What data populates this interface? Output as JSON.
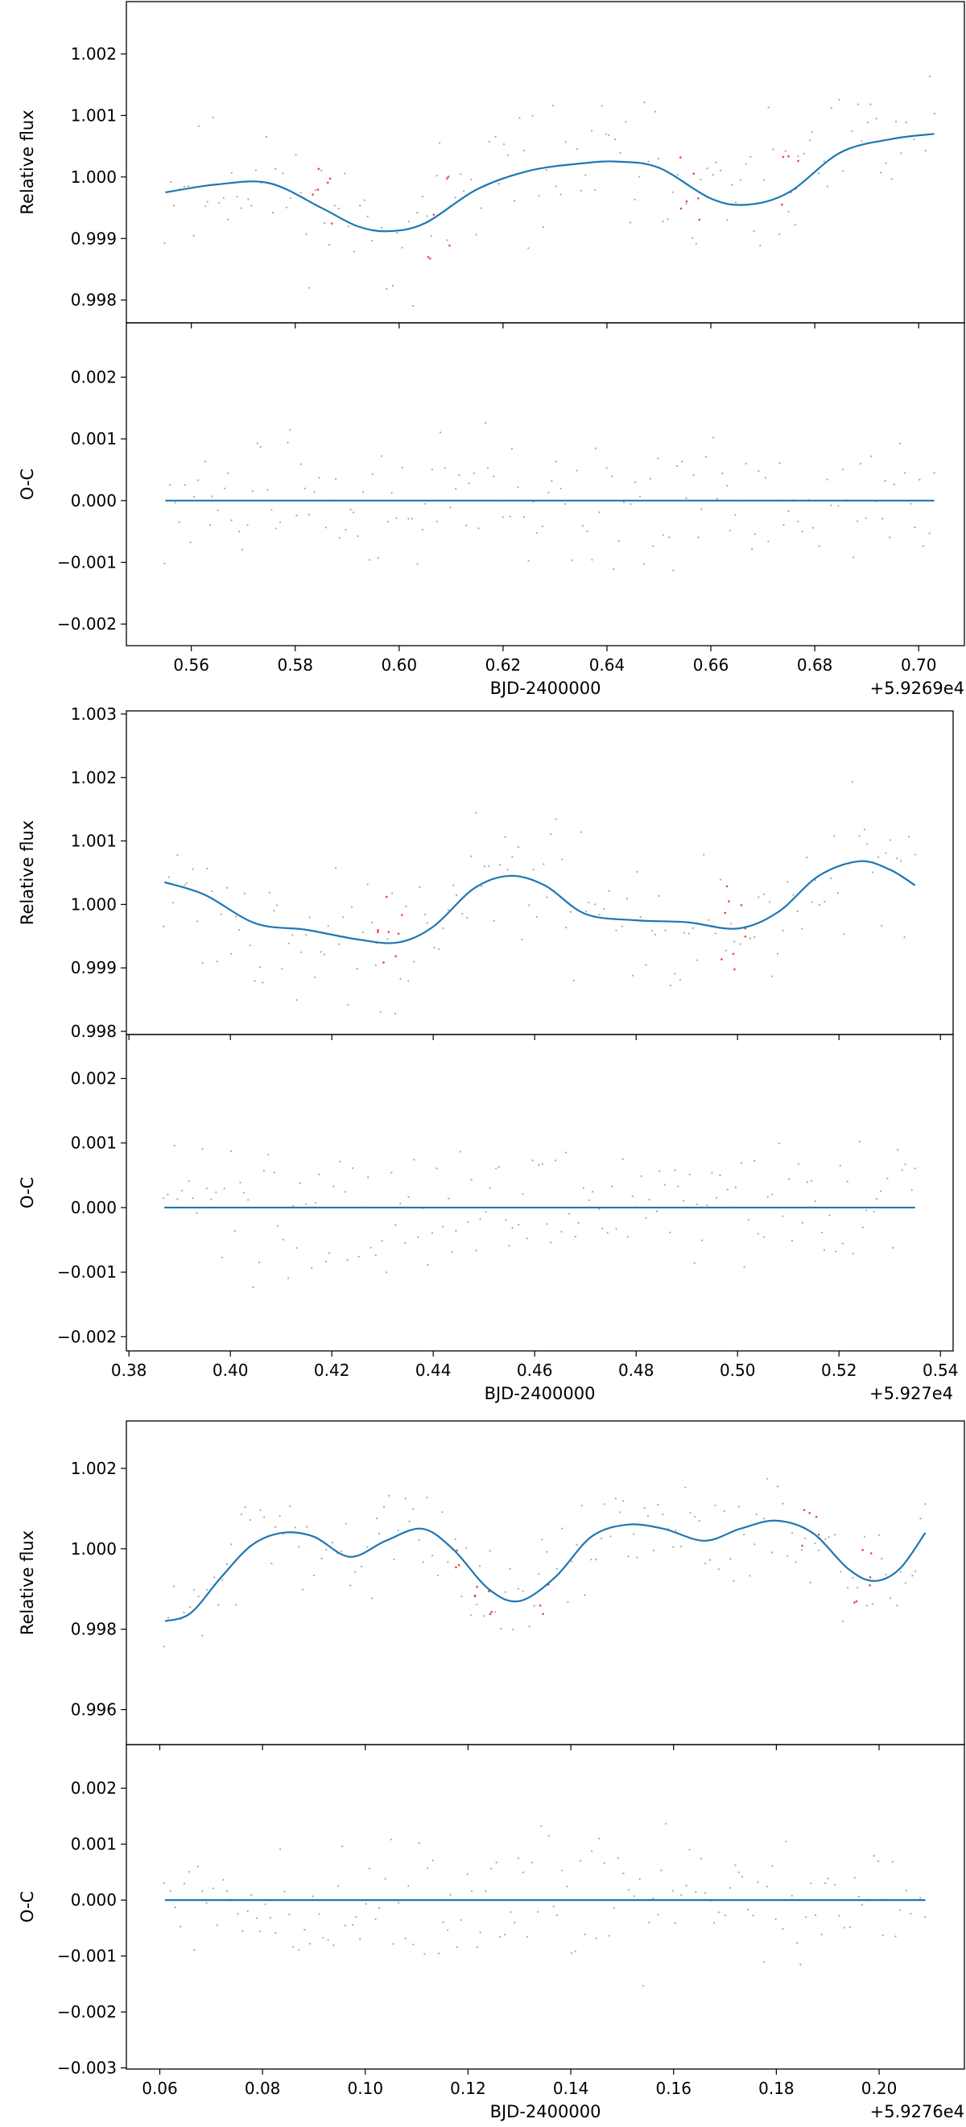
{
  "colors": {
    "model": "#1f77b4",
    "points": "#a7a7a7",
    "outliers": "#e8414a",
    "axis": "#000000"
  },
  "chart_data": [
    {
      "type": "line",
      "panel": "Relative flux",
      "ylabel": "Relative flux",
      "xlabel": "",
      "xlim": [
        0.5475,
        0.7088
      ],
      "ylim": [
        0.99763,
        1.00285
      ],
      "xticks": [
        0.56,
        0.58,
        0.6,
        0.62,
        0.64,
        0.66,
        0.68,
        0.7
      ],
      "xtick_labels": [],
      "yticks": [
        0.998,
        0.999,
        1.0,
        1.001,
        1.002
      ],
      "ytick_labels": [
        "0.998",
        "0.999",
        "1.000",
        "1.001",
        "1.002"
      ],
      "noise": 0.0009,
      "seed": 11,
      "outlier_x": [
        0.584,
        0.587,
        0.606,
        0.609,
        0.655,
        0.657,
        0.674,
        0.676
      ],
      "model": {
        "x": [
          0.555,
          0.565,
          0.575,
          0.585,
          0.592,
          0.598,
          0.605,
          0.615,
          0.625,
          0.635,
          0.642,
          0.65,
          0.66,
          0.667,
          0.675,
          0.685,
          0.695,
          0.703
        ],
        "y": [
          0.99975,
          0.99988,
          0.9999,
          0.9995,
          0.9992,
          0.99912,
          0.99925,
          0.9998,
          1.0001,
          1.00022,
          1.00025,
          1.00015,
          0.99965,
          0.99955,
          0.99975,
          1.0004,
          1.00062,
          1.0007
        ]
      }
    },
    {
      "type": "line",
      "panel": "O-C",
      "ylabel": "O-C",
      "xlabel": "BJD-2400000",
      "offset_label": "+5.9269e4",
      "xlim": [
        0.5475,
        0.7088
      ],
      "ylim": [
        -0.00235,
        0.00288
      ],
      "xticks": [
        0.56,
        0.58,
        0.6,
        0.62,
        0.64,
        0.66,
        0.68,
        0.7
      ],
      "xtick_labels": [
        "0.56",
        "0.58",
        "0.60",
        "0.62",
        "0.64",
        "0.66",
        "0.68",
        "0.70"
      ],
      "yticks": [
        -0.002,
        -0.001,
        0.0,
        0.001,
        0.002
      ],
      "ytick_labels": [
        "−0.002",
        "−0.001",
        "0.000",
        "0.001",
        "0.002"
      ],
      "noise": 0.0009,
      "seed": 12,
      "model": {
        "x": [
          0.555,
          0.703
        ],
        "y": [
          0,
          0
        ]
      }
    },
    {
      "type": "line",
      "panel": "Relative flux",
      "ylabel": "Relative flux",
      "xlabel": "",
      "xlim": [
        0.3795,
        0.5425
      ],
      "ylim": [
        0.99795,
        1.00305
      ],
      "xticks": [
        0.38,
        0.4,
        0.42,
        0.44,
        0.46,
        0.48,
        0.5,
        0.52,
        0.54
      ],
      "xtick_labels": [],
      "yticks": [
        0.998,
        0.999,
        1.0,
        1.001,
        1.002,
        1.003
      ],
      "ytick_labels": [
        "0.998",
        "0.999",
        "1.000",
        "1.001",
        "1.002",
        "1.003"
      ],
      "noise": 0.0009,
      "seed": 21,
      "outlier_x": [
        0.429,
        0.431,
        0.433,
        0.497,
        0.499,
        0.501
      ],
      "model": {
        "x": [
          0.387,
          0.395,
          0.405,
          0.415,
          0.425,
          0.433,
          0.44,
          0.448,
          0.455,
          0.462,
          0.47,
          0.48,
          0.49,
          0.5,
          0.508,
          0.516,
          0.524,
          0.53,
          0.535
        ],
        "y": [
          1.00035,
          1.00015,
          0.9997,
          0.9996,
          0.99945,
          0.9994,
          0.99965,
          1.00025,
          1.00045,
          1.0003,
          0.99985,
          0.99975,
          0.99972,
          0.99962,
          0.99988,
          1.00045,
          1.00068,
          1.00055,
          1.0003
        ]
      }
    },
    {
      "type": "line",
      "panel": "O-C",
      "ylabel": "O-C",
      "xlabel": "BJD-2400000",
      "offset_label": "+5.927e4",
      "xlim": [
        0.3795,
        0.5425
      ],
      "ylim": [
        -0.00222,
        0.00268
      ],
      "xticks": [
        0.38,
        0.4,
        0.42,
        0.44,
        0.46,
        0.48,
        0.5,
        0.52,
        0.54
      ],
      "xtick_labels": [
        "0.38",
        "0.40",
        "0.42",
        "0.44",
        "0.46",
        "0.48",
        "0.50",
        "0.52",
        "0.54"
      ],
      "yticks": [
        -0.002,
        -0.001,
        0.0,
        0.001,
        0.002
      ],
      "ytick_labels": [
        "−0.002",
        "−0.001",
        "0.000",
        "0.001",
        "0.002"
      ],
      "noise": 0.0009,
      "seed": 22,
      "model": {
        "x": [
          0.387,
          0.535
        ],
        "y": [
          0,
          0
        ]
      }
    },
    {
      "type": "line",
      "panel": "Relative flux",
      "ylabel": "Relative flux",
      "xlabel": "",
      "xlim": [
        0.0535,
        0.2166
      ],
      "ylim": [
        0.99513,
        1.00318
      ],
      "xticks": [
        0.06,
        0.08,
        0.1,
        0.12,
        0.14,
        0.16,
        0.18,
        0.2
      ],
      "xtick_labels": [],
      "yticks": [
        0.996,
        0.998,
        1.0,
        1.002
      ],
      "ytick_labels": [
        "0.996",
        "0.998",
        "1.000",
        "1.002"
      ],
      "noise": 0.001,
      "seed": 31,
      "outlier_x": [
        0.118,
        0.121,
        0.124,
        0.135,
        0.186,
        0.188,
        0.196,
        0.198
      ],
      "model": {
        "x": [
          0.061,
          0.066,
          0.072,
          0.078,
          0.084,
          0.09,
          0.097,
          0.104,
          0.111,
          0.117,
          0.124,
          0.13,
          0.137,
          0.144,
          0.151,
          0.158,
          0.166,
          0.173,
          0.18,
          0.187,
          0.194,
          0.199,
          0.204,
          0.209
        ],
        "y": [
          0.9982,
          0.9984,
          0.9993,
          1.0001,
          1.0004,
          1.0003,
          0.9998,
          1.0002,
          1.0005,
          1.0,
          0.999,
          0.9987,
          0.9993,
          1.0003,
          1.0006,
          1.0005,
          1.0002,
          1.0005,
          1.0007,
          1.0004,
          0.9995,
          0.9992,
          0.9995,
          1.0004
        ]
      }
    },
    {
      "type": "line",
      "panel": "O-C",
      "ylabel": "O-C",
      "xlabel": "BJD-2400000",
      "offset_label": "+5.9276e4",
      "xlim": [
        0.0535,
        0.2166
      ],
      "ylim": [
        -0.00302,
        0.00278
      ],
      "xticks": [
        0.06,
        0.08,
        0.1,
        0.12,
        0.14,
        0.16,
        0.18,
        0.2
      ],
      "xtick_labels": [
        "0.06",
        "0.08",
        "0.10",
        "0.12",
        "0.14",
        "0.16",
        "0.18",
        "0.20"
      ],
      "yticks": [
        -0.003,
        -0.002,
        -0.001,
        0.0,
        0.001,
        0.002
      ],
      "ytick_labels": [
        "−0.003",
        "−0.002",
        "−0.001",
        "0.000",
        "0.001",
        "0.002"
      ],
      "noise": 0.001,
      "seed": 32,
      "model": {
        "x": [
          0.061,
          0.209
        ],
        "y": [
          0,
          0
        ]
      }
    }
  ]
}
